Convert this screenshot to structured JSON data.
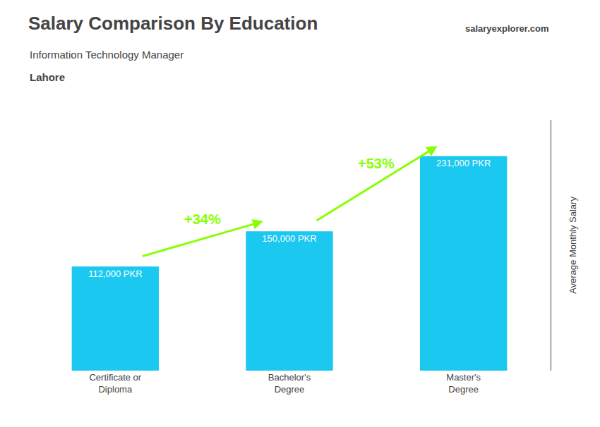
{
  "chart_data": {
    "type": "bar",
    "title": "Salary Comparison By Education",
    "subtitle": "Information Technology Manager",
    "city": "Lahore",
    "watermark": "salaryexplorer.com",
    "ylabel": "Average Monthly Salary",
    "categories": [
      "Certificate or\nDiploma",
      "Bachelor's\nDegree",
      "Master's\nDegree"
    ],
    "values": [
      112000,
      150000,
      231000
    ],
    "value_labels": [
      "112,000 PKR",
      "150,000 PKR",
      "231,000 PKR"
    ],
    "data_labels": true,
    "color": "#1BC8F0",
    "ylim": [
      0,
      270000
    ],
    "yticks": [],
    "tick_labels": "x",
    "grid": false,
    "annotations": [
      {
        "text": "+34%",
        "color": "#88FF00"
      },
      {
        "text": "+53%",
        "color": "#88FF00"
      }
    ]
  }
}
